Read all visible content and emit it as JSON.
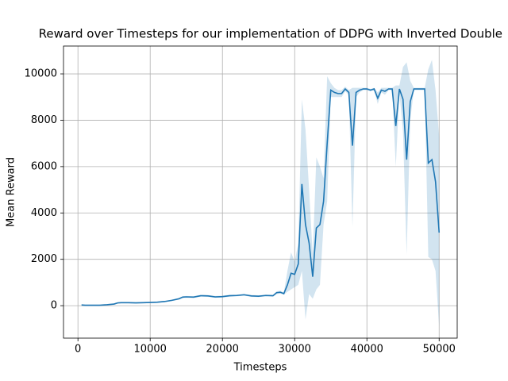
{
  "chart_data": {
    "type": "line",
    "title": "Reward over Timesteps for our implementation of DDPG with Inverted Double",
    "xlabel": "Timesteps",
    "ylabel": "Mean Reward",
    "x": [
      500,
      1000,
      2000,
      3000,
      4000,
      5000,
      5500,
      6000,
      7000,
      8000,
      9000,
      10000,
      11000,
      12000,
      13000,
      14000,
      14500,
      15000,
      16000,
      17000,
      18000,
      19000,
      20000,
      21000,
      22000,
      23000,
      24000,
      25000,
      26000,
      27000,
      27500,
      28000,
      28500,
      29000,
      29500,
      30000,
      30500,
      31000,
      31500,
      32000,
      32500,
      33000,
      33500,
      34000,
      34500,
      35000,
      35500,
      36000,
      36500,
      37000,
      37500,
      38000,
      38500,
      39000,
      39500,
      40000,
      40500,
      41000,
      41500,
      42000,
      42500,
      43000,
      43500,
      44000,
      44500,
      45000,
      45500,
      46000,
      46500,
      47000,
      47500,
      48000,
      48500,
      49000,
      49500,
      50000
    ],
    "series": [
      {
        "name": "Mean Reward",
        "color": "#1f77b4",
        "values": [
          30,
          20,
          20,
          20,
          40,
          70,
          120,
          130,
          130,
          120,
          130,
          140,
          150,
          180,
          230,
          300,
          370,
          380,
          370,
          430,
          420,
          380,
          390,
          430,
          440,
          470,
          420,
          410,
          440,
          430,
          560,
          580,
          520,
          900,
          1400,
          1350,
          1800,
          5250,
          3500,
          2700,
          1250,
          3350,
          3500,
          4500,
          7000,
          9300,
          9200,
          9150,
          9150,
          9350,
          9200,
          6900,
          9200,
          9300,
          9350,
          9350,
          9300,
          9350,
          8950,
          9300,
          9250,
          9350,
          9350,
          7750,
          9350,
          8900,
          6300,
          8800,
          9350,
          9350,
          9350,
          9350,
          6150,
          6300,
          5350,
          3150
        ],
        "lower": [
          0,
          -10,
          -10,
          -10,
          10,
          40,
          90,
          100,
          100,
          90,
          100,
          110,
          120,
          150,
          200,
          260,
          330,
          340,
          330,
          390,
          380,
          340,
          350,
          390,
          400,
          430,
          380,
          370,
          400,
          390,
          500,
          520,
          480,
          600,
          700,
          800,
          900,
          1500,
          -600,
          500,
          300,
          700,
          900,
          3500,
          4500,
          9000,
          9000,
          9000,
          9000,
          9250,
          9100,
          3400,
          9000,
          9200,
          9300,
          9300,
          9250,
          9300,
          8700,
          9200,
          9100,
          9300,
          9300,
          6000,
          9200,
          7500,
          2200,
          8000,
          9300,
          9300,
          9300,
          9300,
          2100,
          2000,
          1500,
          -900
        ],
        "upper": [
          60,
          50,
          50,
          50,
          70,
          100,
          150,
          160,
          160,
          150,
          160,
          170,
          180,
          210,
          260,
          340,
          410,
          420,
          410,
          470,
          460,
          420,
          430,
          470,
          480,
          510,
          460,
          450,
          480,
          470,
          620,
          650,
          560,
          1500,
          2300,
          1900,
          2700,
          8900,
          7600,
          5000,
          2200,
          6400,
          6000,
          5500,
          9900,
          9600,
          9400,
          9300,
          9300,
          9450,
          9300,
          9400,
          9400,
          9400,
          9400,
          9400,
          9350,
          9400,
          9200,
          9400,
          9400,
          9400,
          9400,
          9500,
          9500,
          10300,
          10500,
          9700,
          9400,
          9400,
          9400,
          9400,
          10200,
          10600,
          9300,
          7300
        ]
      }
    ],
    "xlim": [
      -2000,
      52500
    ],
    "ylim": [
      -1400,
      11200
    ],
    "xticks": [
      0,
      10000,
      20000,
      30000,
      40000,
      50000
    ],
    "yticks": [
      0,
      2000,
      4000,
      6000,
      8000,
      10000
    ],
    "grid": true
  }
}
